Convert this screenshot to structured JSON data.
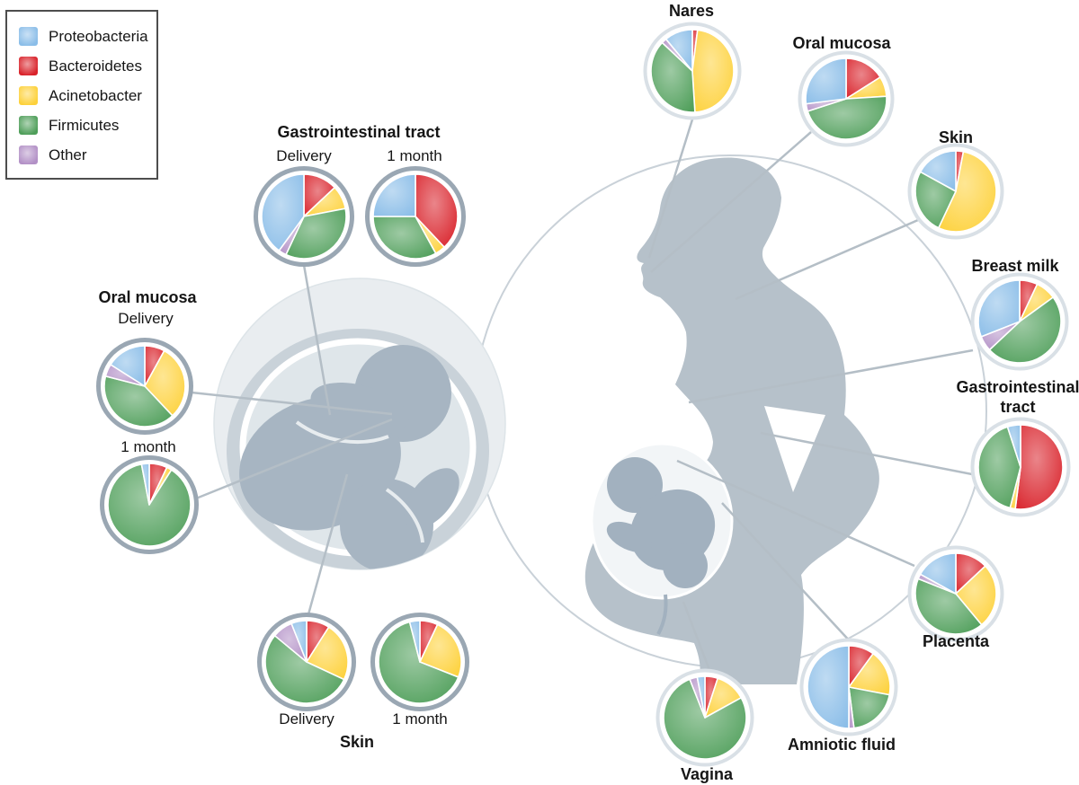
{
  "figure": {
    "description": "Microbiome composition (pie charts) across maternal body sites and infant body sites at delivery and 1 month"
  },
  "legend": {
    "items": [
      {
        "label": "Proteobacteria",
        "color": "#8abde8"
      },
      {
        "label": "Bacteroidetes",
        "color": "#d9222a"
      },
      {
        "label": "Acinetobacter",
        "color": "#fdd13a"
      },
      {
        "label": "Firmicutes",
        "color": "#4e9e59"
      },
      {
        "label": "Other",
        "color": "#b290c6"
      }
    ]
  },
  "labels": {
    "infant_gi_title": "Gastrointestinal tract",
    "infant_gi_delivery": "Delivery",
    "infant_gi_1month": "1 month",
    "infant_oral_title": "Oral mucosa",
    "infant_oral_delivery": "Delivery",
    "infant_oral_1month": "1 month",
    "infant_skin_delivery": "Delivery",
    "infant_skin_1month": "1 month",
    "infant_skin_title": "Skin",
    "mother_nares": "Nares",
    "mother_oral": "Oral mucosa",
    "mother_skin": "Skin",
    "mother_breast_milk": "Breast milk",
    "mother_gi_line1": "Gastrointestinal",
    "mother_gi_line2": "tract",
    "mother_placenta": "Placenta",
    "mother_amniotic": "Amniotic fluid",
    "mother_vagina": "Vagina"
  },
  "chart_data": {
    "type": "pie",
    "unit": "relative abundance, % (estimated from figure)",
    "slice_order_clockwise_from_top": [
      "Bacteroidetes",
      "Acinetobacter",
      "Firmicutes",
      "Other",
      "Proteobacteria"
    ],
    "colors": {
      "Proteobacteria": "#8abde8",
      "Bacteroidetes": "#d9222a",
      "Acinetobacter": "#fdd13a",
      "Firmicutes": "#4e9e59",
      "Other": "#b290c6"
    },
    "pies": [
      {
        "id": "infant_gi_delivery",
        "group": "Infant",
        "site": "Gastrointestinal tract",
        "timepoint": "Delivery",
        "values": {
          "Bacteroidetes": 13,
          "Acinetobacter": 9,
          "Firmicutes": 35,
          "Other": 3,
          "Proteobacteria": 40
        }
      },
      {
        "id": "infant_gi_1month",
        "group": "Infant",
        "site": "Gastrointestinal tract",
        "timepoint": "1 month",
        "values": {
          "Bacteroidetes": 38,
          "Acinetobacter": 4,
          "Firmicutes": 33,
          "Other": 0,
          "Proteobacteria": 25
        }
      },
      {
        "id": "infant_oral_delivery",
        "group": "Infant",
        "site": "Oral mucosa",
        "timepoint": "Delivery",
        "values": {
          "Bacteroidetes": 8,
          "Acinetobacter": 30,
          "Firmicutes": 41,
          "Other": 5,
          "Proteobacteria": 16
        }
      },
      {
        "id": "infant_oral_1month",
        "group": "Infant",
        "site": "Oral mucosa",
        "timepoint": "1 month",
        "values": {
          "Bacteroidetes": 7,
          "Acinetobacter": 2,
          "Firmicutes": 88,
          "Other": 0,
          "Proteobacteria": 3
        }
      },
      {
        "id": "infant_skin_delivery",
        "group": "Infant",
        "site": "Skin",
        "timepoint": "Delivery",
        "values": {
          "Bacteroidetes": 9,
          "Acinetobacter": 23,
          "Firmicutes": 54,
          "Other": 8,
          "Proteobacteria": 6
        }
      },
      {
        "id": "infant_skin_1month",
        "group": "Infant",
        "site": "Skin",
        "timepoint": "1 month",
        "values": {
          "Bacteroidetes": 7,
          "Acinetobacter": 24,
          "Firmicutes": 65,
          "Other": 0,
          "Proteobacteria": 4
        }
      },
      {
        "id": "mother_nares",
        "group": "Mother",
        "site": "Nares",
        "timepoint": "",
        "values": {
          "Bacteroidetes": 2,
          "Acinetobacter": 47,
          "Firmicutes": 38,
          "Other": 2,
          "Proteobacteria": 11
        }
      },
      {
        "id": "mother_oral",
        "group": "Mother",
        "site": "Oral mucosa",
        "timepoint": "",
        "values": {
          "Bacteroidetes": 16,
          "Acinetobacter": 8,
          "Firmicutes": 46,
          "Other": 3,
          "Proteobacteria": 27
        }
      },
      {
        "id": "mother_skin",
        "group": "Mother",
        "site": "Skin",
        "timepoint": "",
        "values": {
          "Bacteroidetes": 3,
          "Acinetobacter": 54,
          "Firmicutes": 26,
          "Other": 0,
          "Proteobacteria": 17
        }
      },
      {
        "id": "mother_breast_milk",
        "group": "Mother",
        "site": "Breast milk",
        "timepoint": "",
        "values": {
          "Bacteroidetes": 7,
          "Acinetobacter": 8,
          "Firmicutes": 48,
          "Other": 6,
          "Proteobacteria": 31
        }
      },
      {
        "id": "mother_gi",
        "group": "Mother",
        "site": "Gastrointestinal tract",
        "timepoint": "",
        "values": {
          "Bacteroidetes": 52,
          "Acinetobacter": 2,
          "Firmicutes": 41,
          "Other": 0,
          "Proteobacteria": 5
        }
      },
      {
        "id": "mother_placenta",
        "group": "Mother",
        "site": "Placenta",
        "timepoint": "",
        "values": {
          "Bacteroidetes": 13,
          "Acinetobacter": 26,
          "Firmicutes": 42,
          "Other": 2,
          "Proteobacteria": 17
        }
      },
      {
        "id": "mother_amniotic",
        "group": "Mother",
        "site": "Amniotic fluid",
        "timepoint": "",
        "values": {
          "Bacteroidetes": 10,
          "Acinetobacter": 18,
          "Firmicutes": 20,
          "Other": 2,
          "Proteobacteria": 50
        }
      },
      {
        "id": "mother_vagina",
        "group": "Mother",
        "site": "Vagina",
        "timepoint": "",
        "values": {
          "Bacteroidetes": 5,
          "Acinetobacter": 12,
          "Firmicutes": 77,
          "Other": 3,
          "Proteobacteria": 3
        }
      }
    ]
  }
}
